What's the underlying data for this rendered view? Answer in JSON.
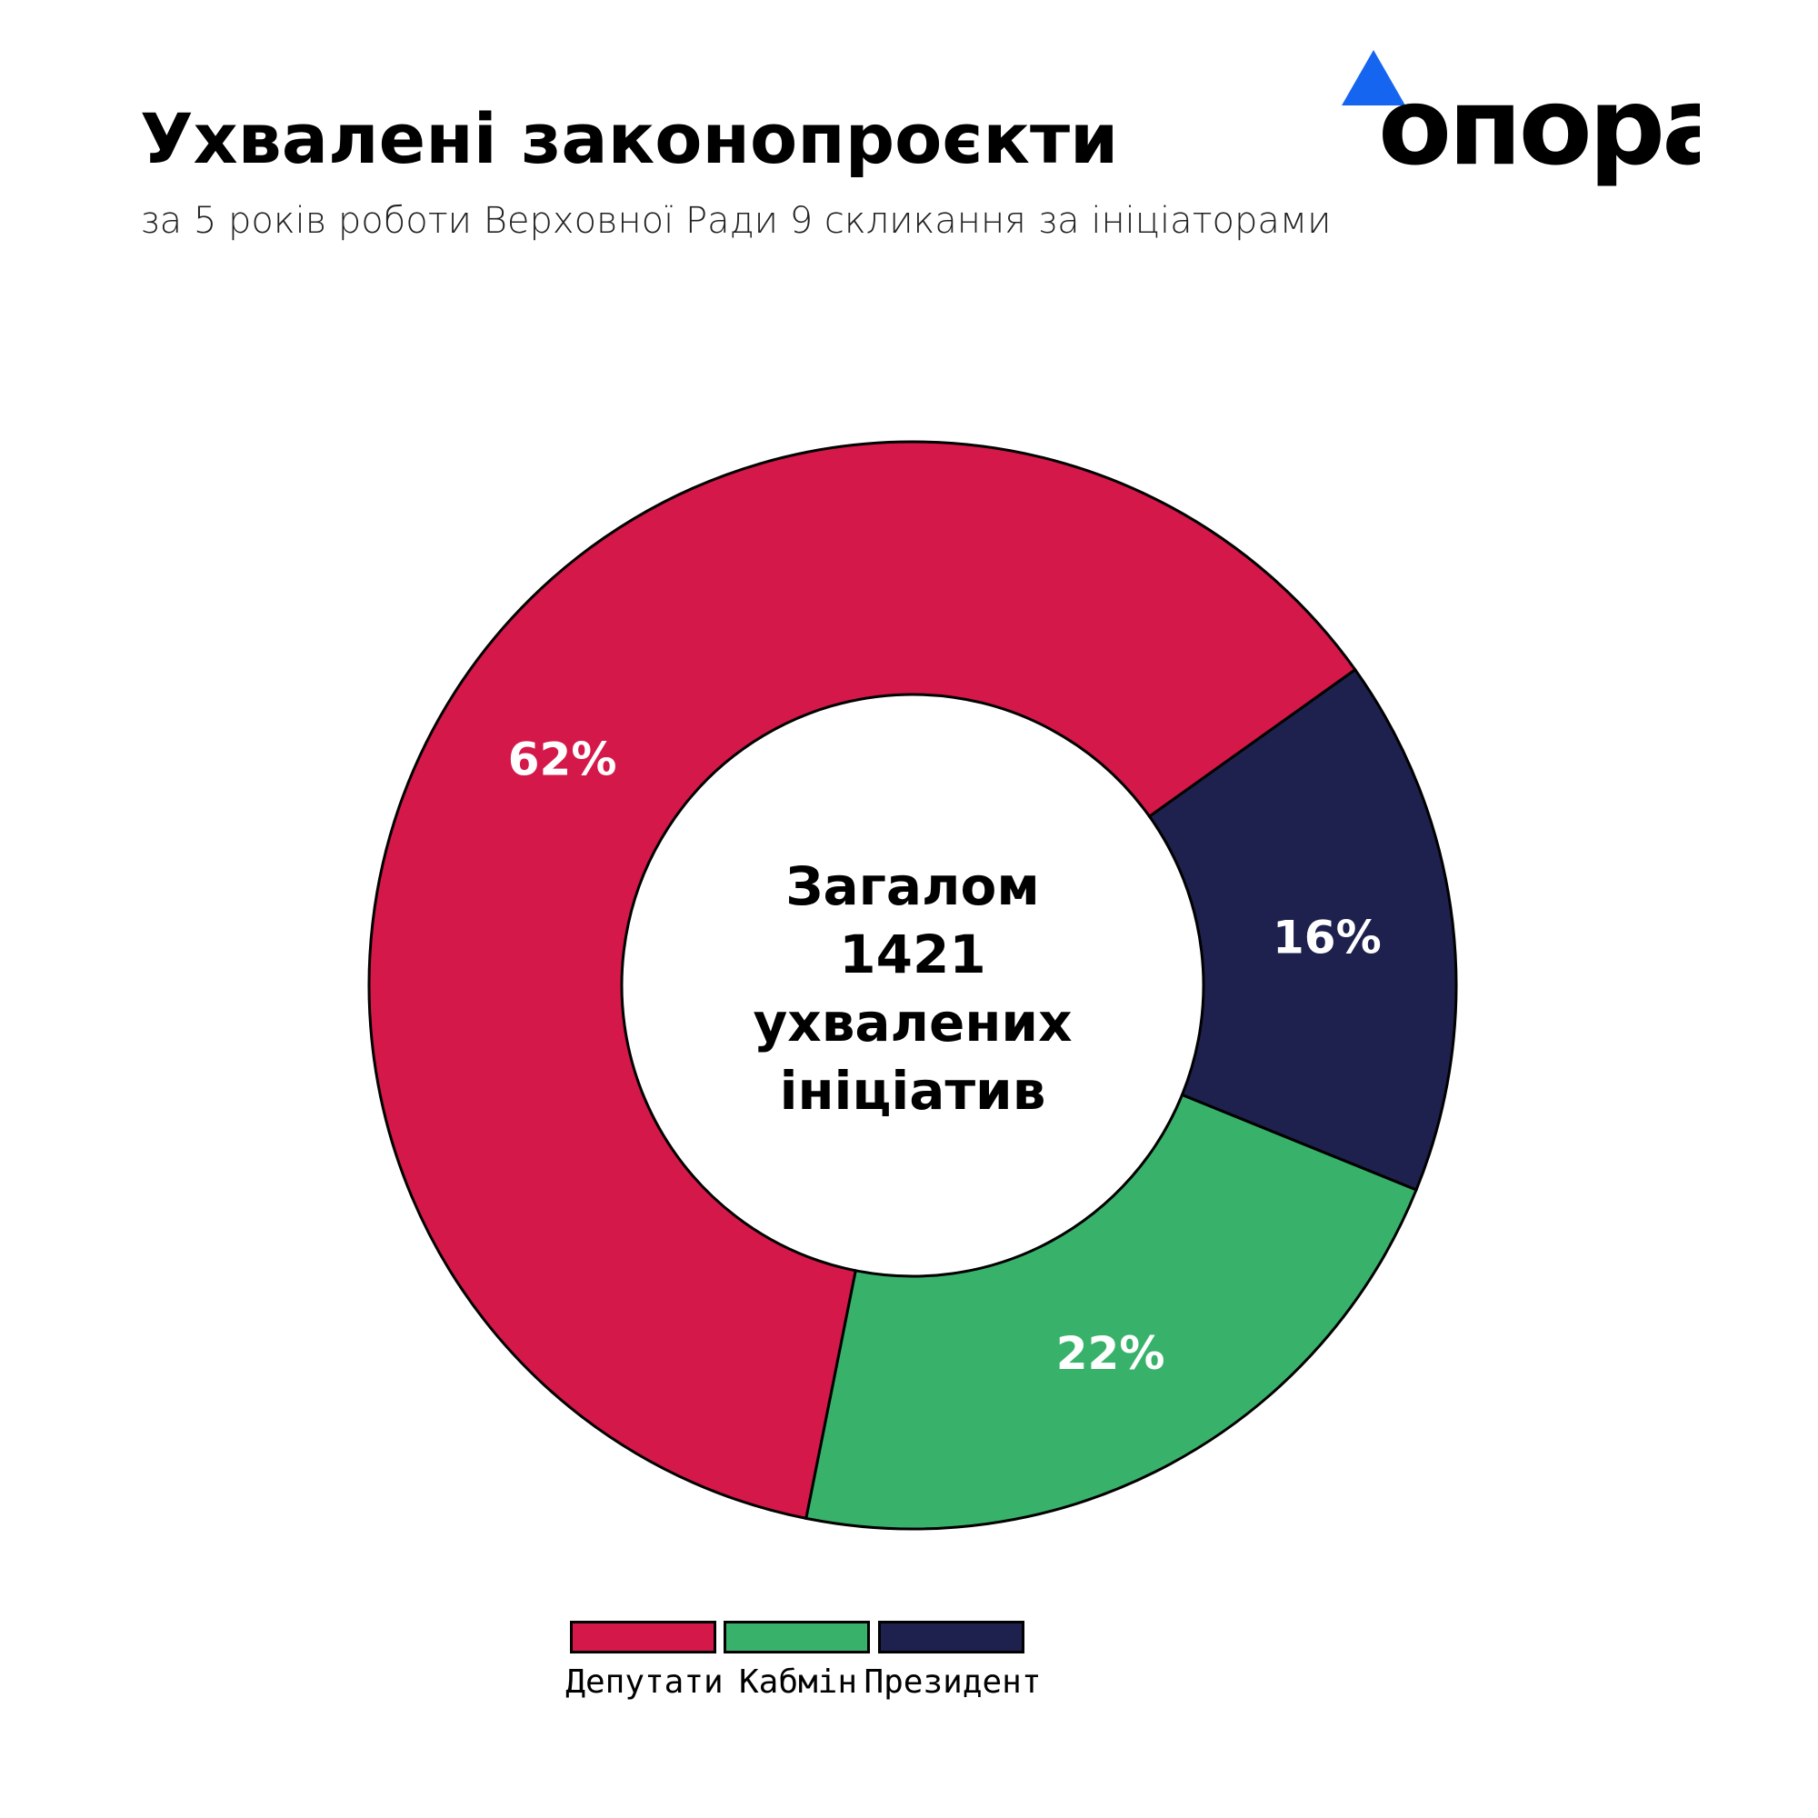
{
  "header": {
    "title": "Ухвалені законопроєкти",
    "subtitle": "за 5 років роботи Верховної Ради 9 скликання за ініціаторами",
    "logo_text": "опора"
  },
  "colors": {
    "accent": "#1565F0"
  },
  "chart_data": {
    "type": "pie",
    "donut": true,
    "categories": [
      "Депутати",
      "Кабмін",
      "Президент"
    ],
    "values": [
      62,
      22,
      16
    ],
    "labels": [
      "62%",
      "22%",
      "16%"
    ],
    "colors": [
      "#D4184A",
      "#38B26A",
      "#1E204E"
    ],
    "center_text": [
      "Загалом",
      "1421",
      "ухвалених",
      "ініціатив"
    ],
    "legend_position": "bottom",
    "direction": "counterclockwise"
  }
}
